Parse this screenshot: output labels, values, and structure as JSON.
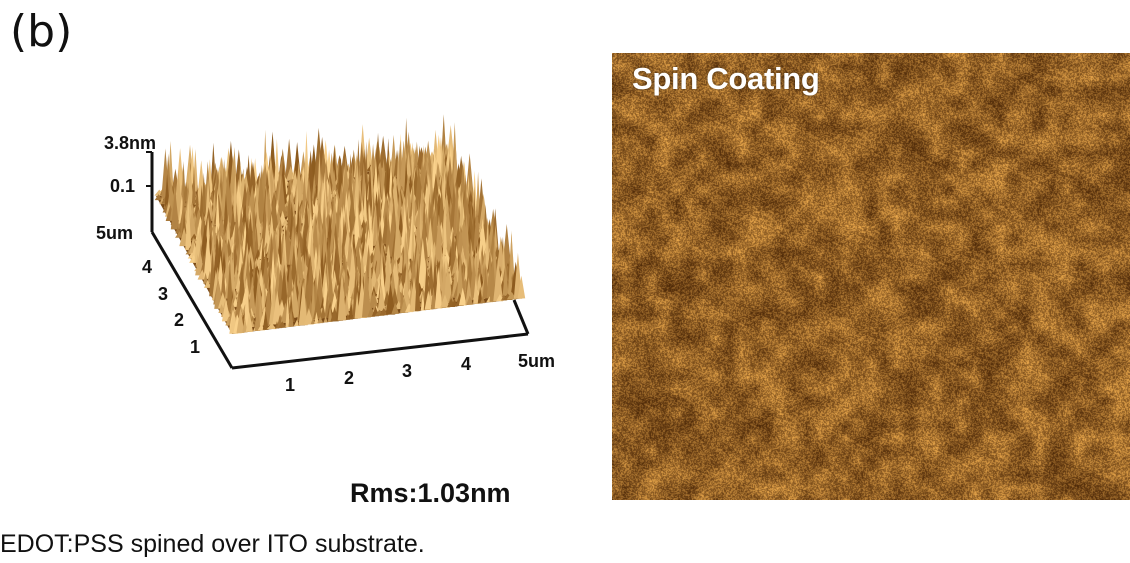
{
  "panel_label": "(b)",
  "surface_plot": {
    "z_ticks": [
      "3.8nm",
      "0.1"
    ],
    "y_axis_end": "5um",
    "y_ticks": [
      "4",
      "3",
      "2",
      "1"
    ],
    "x_ticks": [
      "1",
      "2",
      "3",
      "4"
    ],
    "x_axis_end": "5um",
    "rms_text": "Rms:1.03nm"
  },
  "afm_image": {
    "title": "Spin Coating"
  },
  "caption": "EDOT:PSS spined over ITO substrate."
}
